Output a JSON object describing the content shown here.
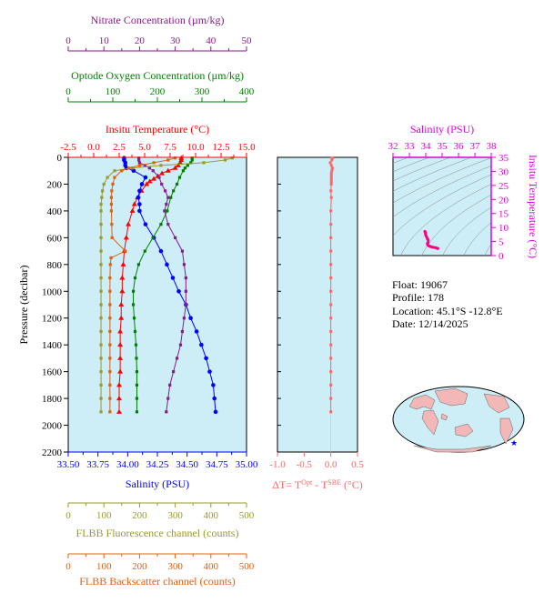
{
  "colors": {
    "nitrate": "#8b1a8b",
    "oxygen": "#008000",
    "temperature": "#ff0000",
    "salinity": "#0000ff",
    "fluorescence": "#9a9a2a",
    "backscatter": "#e06010",
    "delta_t": "#ff6666",
    "ts_axis": "#dd00dd",
    "panel_bg": "#cdeef7"
  },
  "info": {
    "float": "Float:  19067",
    "profile": "Profile:  178",
    "location": "Location:  45.1°S  -12.8°E",
    "date": "Date:  12/14/2025"
  },
  "chart_data": [
    {
      "type": "line",
      "panel": "main-profile",
      "ylabel": "Pressure (decibar)",
      "ylim": [
        2200,
        0
      ],
      "yticks": [
        0,
        200,
        400,
        600,
        800,
        1000,
        1200,
        1400,
        1600,
        1800,
        2000,
        2200
      ],
      "axes": [
        {
          "key": "temperature",
          "label": "Insitu Temperature (°C)",
          "position": "top",
          "range": [
            -2.5,
            15.0
          ],
          "ticks": [
            "-2.5",
            "0.0",
            "2.5",
            "5.0",
            "7.5",
            "10.0",
            "12.5",
            "15.0"
          ]
        },
        {
          "key": "oxygen",
          "label": "Optode Oxygen Concentration (µm/kg)",
          "position": "top",
          "range": [
            0,
            400
          ],
          "ticks": [
            "0",
            "100",
            "200",
            "300",
            "400"
          ]
        },
        {
          "key": "nitrate",
          "label": "Nitrate Concentration (µm/kg)",
          "position": "top",
          "range": [
            0,
            50
          ],
          "ticks": [
            "0",
            "10",
            "20",
            "30",
            "40",
            "50"
          ]
        },
        {
          "key": "salinity",
          "label": "Salinity (PSU)",
          "position": "bottom",
          "range": [
            33.5,
            35.0
          ],
          "ticks": [
            "33.50",
            "33.75",
            "34.00",
            "34.25",
            "34.50",
            "34.75",
            "35.00"
          ]
        },
        {
          "key": "fluorescence",
          "label": "FLBB Fluorescence channel (counts)",
          "position": "bottom",
          "range": [
            0,
            500
          ],
          "ticks": [
            "0",
            "100",
            "200",
            "300",
            "400",
            "500"
          ]
        },
        {
          "key": "backscatter",
          "label": "FLBB Backscatter channel (counts)",
          "position": "bottom",
          "range": [
            0,
            500
          ],
          "ticks": [
            "0",
            "100",
            "200",
            "300",
            "400",
            "500"
          ]
        }
      ],
      "series": [
        {
          "key": "temperature",
          "marker": "triangle",
          "p": [
            5,
            20,
            40,
            60,
            80,
            100,
            120,
            140,
            160,
            180,
            200,
            250,
            300,
            350,
            400,
            500,
            600,
            700,
            800,
            900,
            1000,
            1100,
            1200,
            1300,
            1400,
            1500,
            1600,
            1700,
            1800,
            1900
          ],
          "v": [
            8.6,
            8.6,
            8.5,
            8.3,
            8.0,
            7.3,
            6.7,
            6.3,
            5.9,
            5.5,
            5.2,
            4.7,
            4.3,
            4.0,
            3.8,
            3.4,
            3.2,
            3.0,
            2.9,
            2.8,
            2.8,
            2.7,
            2.7,
            2.6,
            2.6,
            2.6,
            2.6,
            2.5,
            2.5,
            2.5
          ]
        },
        {
          "key": "salinity",
          "marker": "circle",
          "p": [
            5,
            20,
            40,
            60,
            80,
            100,
            150,
            200,
            250,
            300,
            350,
            400,
            500,
            600,
            700,
            800,
            900,
            1000,
            1100,
            1200,
            1300,
            1400,
            1500,
            1600,
            1700,
            1800,
            1900
          ],
          "v": [
            33.97,
            33.97,
            33.98,
            33.98,
            33.99,
            34.05,
            34.15,
            34.12,
            34.1,
            34.09,
            34.1,
            34.1,
            34.15,
            34.22,
            34.28,
            34.33,
            34.38,
            34.43,
            34.49,
            34.53,
            34.58,
            34.62,
            34.66,
            34.69,
            34.72,
            34.73,
            34.74
          ]
        },
        {
          "key": "oxygen",
          "marker": "square",
          "p": [
            5,
            20,
            40,
            60,
            80,
            100,
            150,
            200,
            250,
            300,
            400,
            500,
            600,
            700,
            800,
            900,
            1000,
            1100,
            1200,
            1300,
            1400,
            1500,
            1600,
            1700,
            1800,
            1900
          ],
          "v": [
            278,
            278,
            275,
            268,
            262,
            258,
            250,
            244,
            236,
            230,
            222,
            208,
            190,
            172,
            158,
            150,
            146,
            146,
            148,
            150,
            152,
            153,
            154,
            154,
            154,
            154
          ]
        },
        {
          "key": "nitrate",
          "marker": "square",
          "p": [
            5,
            20,
            40,
            60,
            80,
            100,
            150,
            200,
            250,
            300,
            350,
            400,
            500,
            600,
            700,
            800,
            900,
            1000,
            1100,
            1200,
            1300,
            1400,
            1500,
            1600,
            1700,
            1800,
            1900
          ],
          "v": [
            19.8,
            19.8,
            20.0,
            21.5,
            22.8,
            23.8,
            25.5,
            26.2,
            27.2,
            28.0,
            27.5,
            27.0,
            28.0,
            30.0,
            32.0,
            32.5,
            33.0,
            33.0,
            33.0,
            32.5,
            32.0,
            31.5,
            30.5,
            29.5,
            28.5,
            28.0,
            27.5
          ]
        },
        {
          "key": "fluorescence",
          "marker": "square",
          "p": [
            5,
            20,
            40,
            60,
            80,
            100,
            150,
            200,
            250,
            300,
            350,
            400,
            500,
            600,
            700,
            800,
            900,
            1000,
            1100,
            1200,
            1300,
            1400,
            1500,
            1600,
            1700,
            1800,
            1900
          ],
          "v": [
            460,
            440,
            380,
            260,
            180,
            130,
            110,
            100,
            96,
            94,
            92,
            92,
            92,
            92,
            92,
            92,
            92,
            92,
            92,
            92,
            92,
            92,
            92,
            92,
            92,
            92,
            92
          ]
        },
        {
          "key": "backscatter",
          "marker": "square",
          "p": [
            5,
            20,
            40,
            60,
            80,
            100,
            150,
            200,
            250,
            300,
            350,
            400,
            500,
            600,
            700,
            750,
            800,
            900,
            1000,
            1100,
            1200,
            1300,
            1400,
            1500,
            1600,
            1700,
            1800,
            1900
          ],
          "v": [
            300,
            280,
            240,
            200,
            170,
            150,
            130,
            125,
            122,
            121,
            121,
            121,
            122,
            123,
            160,
            120,
            118,
            117,
            117,
            117,
            117,
            117,
            117,
            117,
            117,
            117,
            117,
            117
          ]
        }
      ]
    },
    {
      "type": "line",
      "panel": "delta-t",
      "xlabel": "ΔT= T^Opt - T^SBE (°C)",
      "xlim": [
        -1.0,
        0.5
      ],
      "xticks": [
        "-1.0",
        "-0.5",
        "0.0",
        "0.5"
      ],
      "ylim": [
        2200,
        0
      ],
      "series": [
        {
          "key": "delta_t",
          "p": [
            5,
            20,
            40,
            60,
            80,
            100,
            120,
            140,
            160,
            180,
            200,
            250,
            300,
            400,
            500,
            600,
            700,
            800,
            900,
            1000,
            1100,
            1200,
            1300,
            1400,
            1500,
            1600,
            1700,
            1800,
            1900
          ],
          "v": [
            0.03,
            0.02,
            -0.01,
            0.01,
            0.03,
            0.02,
            0.01,
            0.01,
            0.01,
            0.01,
            0.01,
            0.0,
            0.01,
            0.0,
            0.0,
            0.0,
            0.0,
            0.0,
            0.0,
            0.0,
            0.0,
            0.0,
            0.0,
            0.0,
            0.0,
            0.0,
            0.0,
            0.0,
            0.0
          ]
        }
      ]
    },
    {
      "type": "scatter",
      "panel": "ts-diagram",
      "xlabel": "Salinity (PSU)",
      "ylabel": "Insitu Temperature (°C)",
      "xlim": [
        32,
        38
      ],
      "ylim": [
        0,
        35
      ],
      "xticks": [
        "32",
        "33",
        "34",
        "35",
        "36",
        "37",
        "38"
      ],
      "yticks": [
        "0",
        "5",
        "10",
        "15",
        "20",
        "25",
        "30",
        "35"
      ],
      "points": {
        "s": [
          33.95,
          33.97,
          33.98,
          34.0,
          34.05,
          34.1,
          34.15,
          34.15,
          34.1,
          34.12,
          34.2,
          34.3,
          34.4,
          34.5,
          34.6,
          34.7,
          34.74
        ],
        "t": [
          8.6,
          8.3,
          8.0,
          7.3,
          6.7,
          6.0,
          5.5,
          4.7,
          4.3,
          3.8,
          3.4,
          3.2,
          3.0,
          2.9,
          2.8,
          2.6,
          2.5
        ]
      }
    }
  ]
}
